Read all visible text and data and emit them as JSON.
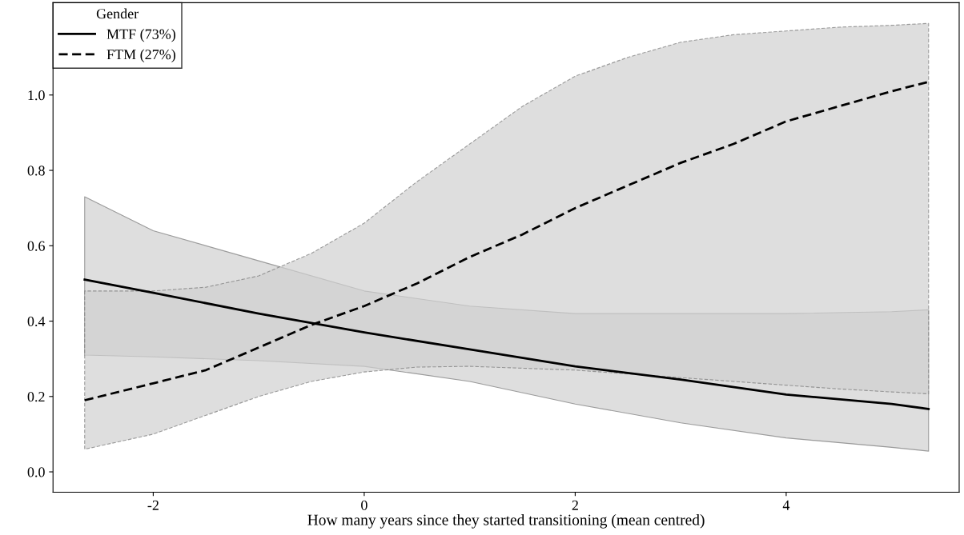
{
  "chart_data": {
    "type": "line",
    "xlabel": "How many years since they started transitioning (mean centred)",
    "legend_title": "Gender",
    "legend": "top left",
    "grid": false,
    "xlim": [
      -2.95,
      5.64
    ],
    "ylim": [
      -0.054,
      1.245
    ],
    "xticks": [
      -2,
      0,
      2,
      4
    ],
    "yticks": [
      {
        "value": 0,
        "label": "0.0"
      },
      {
        "value": 0.2,
        "label": "0.2"
      },
      {
        "value": 0.4,
        "label": "0.4"
      },
      {
        "value": 0.6,
        "label": "0.6"
      },
      {
        "value": 0.8,
        "label": "0.8"
      },
      {
        "value": 1.0,
        "label": "1.0"
      }
    ],
    "series": [
      {
        "name": "MTF (73%)",
        "color": "#000000",
        "line_style": "solid",
        "x": [
          -2.65,
          -2,
          -1,
          0,
          1,
          2,
          3,
          4,
          5,
          5.35
        ],
        "values": [
          0.51,
          0.475,
          0.42,
          0.37,
          0.325,
          0.28,
          0.245,
          0.205,
          0.18,
          0.167
        ],
        "lower": [
          0.31,
          0.305,
          0.295,
          0.28,
          0.24,
          0.18,
          0.13,
          0.09,
          0.065,
          0.055
        ],
        "upper": [
          0.73,
          0.64,
          0.56,
          0.48,
          0.44,
          0.42,
          0.42,
          0.42,
          0.425,
          0.43
        ]
      },
      {
        "name": "FTM (27%)",
        "color": "#000000",
        "line_style": "dashed",
        "x": [
          -2.65,
          -2,
          -1.5,
          -1,
          -0.5,
          0,
          0.5,
          1,
          1.5,
          2,
          2.5,
          3,
          3.5,
          4,
          4.5,
          5,
          5.35
        ],
        "values": [
          0.19,
          0.235,
          0.27,
          0.33,
          0.39,
          0.44,
          0.5,
          0.57,
          0.63,
          0.7,
          0.76,
          0.82,
          0.87,
          0.93,
          0.97,
          1.01,
          1.035
        ],
        "lower": [
          0.06,
          0.1,
          0.15,
          0.2,
          0.24,
          0.265,
          0.278,
          0.28,
          0.275,
          0.27,
          0.26,
          0.25,
          0.24,
          0.23,
          0.22,
          0.212,
          0.207
        ],
        "upper": [
          0.48,
          0.48,
          0.49,
          0.52,
          0.58,
          0.66,
          0.77,
          0.87,
          0.97,
          1.05,
          1.1,
          1.14,
          1.16,
          1.17,
          1.18,
          1.185,
          1.19
        ]
      }
    ]
  }
}
